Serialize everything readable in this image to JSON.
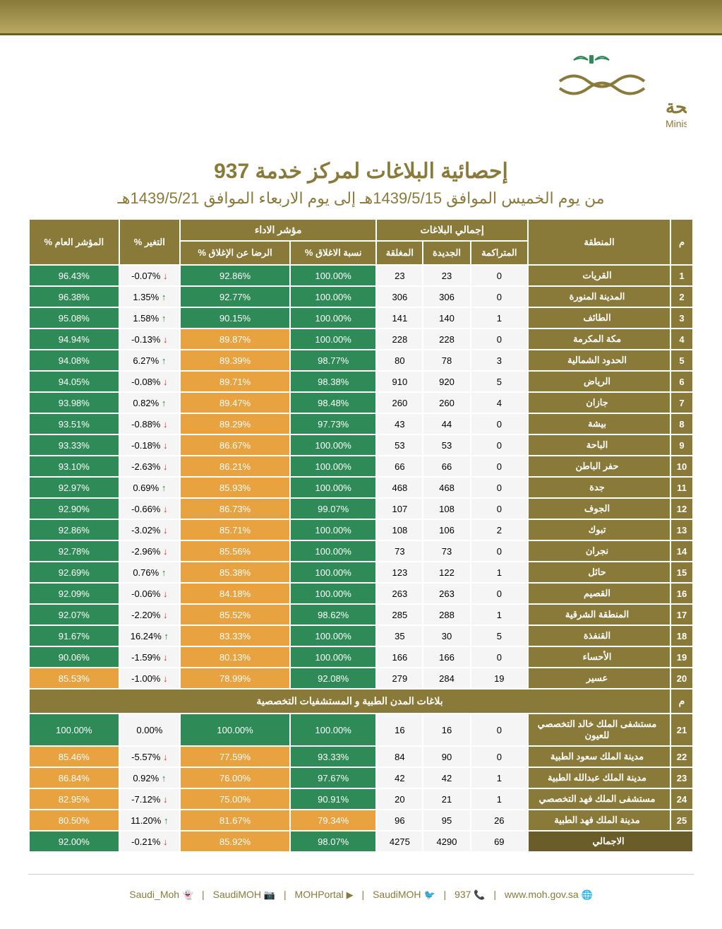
{
  "logo": {
    "text_ar": "وزارة الصحة",
    "text_en": "Ministry of Health"
  },
  "title": {
    "main": "إحصائية البلاغات لمركز خدمة 937",
    "sub": "من يوم الخميس الموافق 1439/5/15هـ إلى يوم الاربعاء الموافق 1439/5/21هـ"
  },
  "headers": {
    "idx": "م",
    "region": "المنطقة",
    "reports_group": "إجمالي البلاغات",
    "accumulated": "المتراكمة",
    "new": "الجديدة",
    "closed": "المغلقة",
    "perf_group": "مؤشر الاداء",
    "close_pct": "نسبة الاغلاق %",
    "satisfaction": "الرضا عن الإغلاق %",
    "change": "التغير %",
    "general": "المؤشر العام %"
  },
  "colors": {
    "green": "#2e8b57",
    "orange": "#e8a23f",
    "gold": "#8a7a3a"
  },
  "rows": [
    {
      "i": 1,
      "region": "القريات",
      "acc": 0,
      "new": 23,
      "closed": 23,
      "close_pct": "100.00%",
      "close_color": "green",
      "sat": "92.86%",
      "sat_color": "green",
      "chg": "-0.07%",
      "dir": "down",
      "gen": "96.43%",
      "gen_color": "green"
    },
    {
      "i": 2,
      "region": "المدينة المنورة",
      "acc": 0,
      "new": 306,
      "closed": 306,
      "close_pct": "100.00%",
      "close_color": "green",
      "sat": "92.77%",
      "sat_color": "green",
      "chg": "1.35%",
      "dir": "up",
      "gen": "96.38%",
      "gen_color": "green"
    },
    {
      "i": 3,
      "region": "الطائف",
      "acc": 1,
      "new": 140,
      "closed": 141,
      "close_pct": "100.00%",
      "close_color": "green",
      "sat": "90.15%",
      "sat_color": "green",
      "chg": "1.58%",
      "dir": "up",
      "gen": "95.08%",
      "gen_color": "green"
    },
    {
      "i": 4,
      "region": "مكة المكرمة",
      "acc": 0,
      "new": 228,
      "closed": 228,
      "close_pct": "100.00%",
      "close_color": "green",
      "sat": "89.87%",
      "sat_color": "orange",
      "chg": "-0.13%",
      "dir": "down",
      "gen": "94.94%",
      "gen_color": "green"
    },
    {
      "i": 5,
      "region": "الحدود الشمالية",
      "acc": 3,
      "new": 78,
      "closed": 80,
      "close_pct": "98.77%",
      "close_color": "green",
      "sat": "89.39%",
      "sat_color": "orange",
      "chg": "6.27%",
      "dir": "up",
      "gen": "94.08%",
      "gen_color": "green"
    },
    {
      "i": 6,
      "region": "الرياض",
      "acc": 5,
      "new": 920,
      "closed": 910,
      "close_pct": "98.38%",
      "close_color": "green",
      "sat": "89.71%",
      "sat_color": "orange",
      "chg": "-0.08%",
      "dir": "down",
      "gen": "94.05%",
      "gen_color": "green"
    },
    {
      "i": 7,
      "region": "جازان",
      "acc": 4,
      "new": 260,
      "closed": 260,
      "close_pct": "98.48%",
      "close_color": "green",
      "sat": "89.47%",
      "sat_color": "orange",
      "chg": "0.82%",
      "dir": "up",
      "gen": "93.98%",
      "gen_color": "green"
    },
    {
      "i": 8,
      "region": "بيشة",
      "acc": 0,
      "new": 44,
      "closed": 43,
      "close_pct": "97.73%",
      "close_color": "green",
      "sat": "89.29%",
      "sat_color": "orange",
      "chg": "-0.88%",
      "dir": "down",
      "gen": "93.51%",
      "gen_color": "green"
    },
    {
      "i": 9,
      "region": "الباحة",
      "acc": 0,
      "new": 53,
      "closed": 53,
      "close_pct": "100.00%",
      "close_color": "green",
      "sat": "86.67%",
      "sat_color": "orange",
      "chg": "-0.18%",
      "dir": "down",
      "gen": "93.33%",
      "gen_color": "green"
    },
    {
      "i": 10,
      "region": "حفر الباطن",
      "acc": 0,
      "new": 66,
      "closed": 66,
      "close_pct": "100.00%",
      "close_color": "green",
      "sat": "86.21%",
      "sat_color": "orange",
      "chg": "-2.63%",
      "dir": "down",
      "gen": "93.10%",
      "gen_color": "green"
    },
    {
      "i": 11,
      "region": "جدة",
      "acc": 0,
      "new": 468,
      "closed": 468,
      "close_pct": "100.00%",
      "close_color": "green",
      "sat": "85.93%",
      "sat_color": "orange",
      "chg": "0.69%",
      "dir": "up",
      "gen": "92.97%",
      "gen_color": "green"
    },
    {
      "i": 12,
      "region": "الجوف",
      "acc": 0,
      "new": 108,
      "closed": 107,
      "close_pct": "99.07%",
      "close_color": "green",
      "sat": "86.73%",
      "sat_color": "orange",
      "chg": "-0.66%",
      "dir": "down",
      "gen": "92.90%",
      "gen_color": "green"
    },
    {
      "i": 13,
      "region": "تبوك",
      "acc": 2,
      "new": 106,
      "closed": 108,
      "close_pct": "100.00%",
      "close_color": "green",
      "sat": "85.71%",
      "sat_color": "orange",
      "chg": "-3.02%",
      "dir": "down",
      "gen": "92.86%",
      "gen_color": "green"
    },
    {
      "i": 14,
      "region": "نجران",
      "acc": 0,
      "new": 73,
      "closed": 73,
      "close_pct": "100.00%",
      "close_color": "green",
      "sat": "85.56%",
      "sat_color": "orange",
      "chg": "-2.96%",
      "dir": "down",
      "gen": "92.78%",
      "gen_color": "green"
    },
    {
      "i": 15,
      "region": "حائل",
      "acc": 1,
      "new": 122,
      "closed": 123,
      "close_pct": "100.00%",
      "close_color": "green",
      "sat": "85.38%",
      "sat_color": "orange",
      "chg": "0.76%",
      "dir": "up",
      "gen": "92.69%",
      "gen_color": "green"
    },
    {
      "i": 16,
      "region": "القصيم",
      "acc": 0,
      "new": 263,
      "closed": 263,
      "close_pct": "100.00%",
      "close_color": "green",
      "sat": "84.18%",
      "sat_color": "orange",
      "chg": "-0.06%",
      "dir": "down",
      "gen": "92.09%",
      "gen_color": "green"
    },
    {
      "i": 17,
      "region": "المنطقة الشرقية",
      "acc": 1,
      "new": 288,
      "closed": 285,
      "close_pct": "98.62%",
      "close_color": "green",
      "sat": "85.52%",
      "sat_color": "orange",
      "chg": "-2.20%",
      "dir": "down",
      "gen": "92.07%",
      "gen_color": "green"
    },
    {
      "i": 18,
      "region": "القنفذة",
      "acc": 5,
      "new": 30,
      "closed": 35,
      "close_pct": "100.00%",
      "close_color": "green",
      "sat": "83.33%",
      "sat_color": "orange",
      "chg": "16.24%",
      "dir": "up",
      "gen": "91.67%",
      "gen_color": "green"
    },
    {
      "i": 19,
      "region": "الأحساء",
      "acc": 0,
      "new": 166,
      "closed": 166,
      "close_pct": "100.00%",
      "close_color": "green",
      "sat": "80.13%",
      "sat_color": "orange",
      "chg": "-1.59%",
      "dir": "down",
      "gen": "90.06%",
      "gen_color": "green"
    },
    {
      "i": 20,
      "region": "عسير",
      "acc": 19,
      "new": 284,
      "closed": 279,
      "close_pct": "92.08%",
      "close_color": "green",
      "sat": "78.99%",
      "sat_color": "orange",
      "chg": "-1.00%",
      "dir": "down",
      "gen": "85.53%",
      "gen_color": "orange"
    }
  ],
  "section2_title": "بلاغات المدن الطبية و المستشفيات التخصصية",
  "rows2": [
    {
      "i": 21,
      "region": "مستشفى الملك خالد التخصصي للعيون",
      "acc": 0,
      "new": 16,
      "closed": 16,
      "close_pct": "100.00%",
      "close_color": "green",
      "sat": "100.00%",
      "sat_color": "green",
      "chg": "0.00%",
      "dir": "none",
      "gen": "100.00%",
      "gen_color": "green"
    },
    {
      "i": 22,
      "region": "مدينة الملك سعود الطبية",
      "acc": 0,
      "new": 90,
      "closed": 84,
      "close_pct": "93.33%",
      "close_color": "green",
      "sat": "77.59%",
      "sat_color": "orange",
      "chg": "-5.57%",
      "dir": "down",
      "gen": "85.46%",
      "gen_color": "orange"
    },
    {
      "i": 23,
      "region": "مدينة الملك عبدالله الطبية",
      "acc": 1,
      "new": 42,
      "closed": 42,
      "close_pct": "97.67%",
      "close_color": "green",
      "sat": "76.00%",
      "sat_color": "orange",
      "chg": "0.92%",
      "dir": "up",
      "gen": "86.84%",
      "gen_color": "orange"
    },
    {
      "i": 24,
      "region": "مستشفى الملك فهد التخصصي",
      "acc": 1,
      "new": 21,
      "closed": 20,
      "close_pct": "90.91%",
      "close_color": "green",
      "sat": "75.00%",
      "sat_color": "orange",
      "chg": "-7.12%",
      "dir": "down",
      "gen": "82.95%",
      "gen_color": "orange"
    },
    {
      "i": 25,
      "region": "مدينة الملك فهد الطبية",
      "acc": 26,
      "new": 95,
      "closed": 96,
      "close_pct": "79.34%",
      "close_color": "orange",
      "sat": "81.67%",
      "sat_color": "orange",
      "chg": "11.20%",
      "dir": "up",
      "gen": "80.50%",
      "gen_color": "orange"
    }
  ],
  "total": {
    "region": "الاجمالي",
    "acc": 69,
    "new": 4290,
    "closed": 4275,
    "close_pct": "98.07%",
    "close_color": "green",
    "sat": "85.92%",
    "sat_color": "orange",
    "chg": "-0.21%",
    "dir": "down",
    "gen": "92.00%",
    "gen_color": "green"
  },
  "footer": {
    "items": [
      {
        "icon": "🌐",
        "text": "www.moh.gov.sa"
      },
      {
        "icon": "📞",
        "text": "937"
      },
      {
        "icon": "🐦",
        "text": "SaudiMOH"
      },
      {
        "icon": "▶",
        "text": "MOHPortal"
      },
      {
        "icon": "📷",
        "text": "SaudiMOH"
      },
      {
        "icon": "👻",
        "text": "Saudi_Moh"
      }
    ]
  }
}
